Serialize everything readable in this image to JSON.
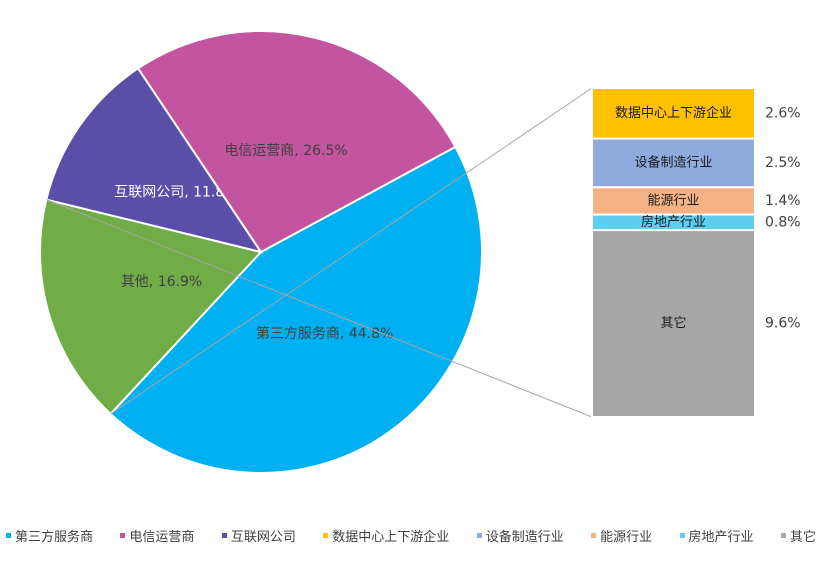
{
  "chart_data": {
    "type": "pie",
    "subtype": "bar-of-pie",
    "title": "",
    "slices": [
      {
        "name": "第三方服务商",
        "value": 44.8,
        "label": "第三方服务商, 44.8%",
        "color": "#00b0f0"
      },
      {
        "name": "其他",
        "value": 16.9,
        "label": "其他, 16.9%",
        "color": "#70ad47"
      },
      {
        "name": "互联网公司",
        "value": 11.8,
        "label": "互联网公司, 11.8%",
        "color": "#5b4ea8"
      },
      {
        "name": "电信运营商",
        "value": 26.5,
        "label": "电信运营商, 26.5%",
        "color": "#c355a0"
      }
    ],
    "breakdown_of": "其他",
    "breakdown": [
      {
        "name": "数据中心上下游企业",
        "value": 2.6,
        "value_label": "2.6%",
        "color": "#ffc000"
      },
      {
        "name": "设备制造行业",
        "value": 2.5,
        "value_label": "2.5%",
        "color": "#8faadc"
      },
      {
        "name": "能源行业",
        "value": 1.4,
        "value_label": "1.4%",
        "color": "#f4b183"
      },
      {
        "name": "房地产行业",
        "value": 0.8,
        "value_label": "0.8%",
        "color": "#5dcef0"
      },
      {
        "name": "其它",
        "value": 9.6,
        "value_label": "9.6%",
        "color": "#a6a6a6"
      }
    ],
    "legend_position": "bottom",
    "legend": [
      {
        "name": "第三方服务商",
        "color": "#00b0f0"
      },
      {
        "name": "电信运营商",
        "color": "#c355a0"
      },
      {
        "name": "互联网公司",
        "color": "#5b4ea8"
      },
      {
        "name": "数据中心上下游企业",
        "color": "#ffc000"
      },
      {
        "name": "设备制造行业",
        "color": "#8faadc"
      },
      {
        "name": "能源行业",
        "color": "#f4b183"
      },
      {
        "name": "房地产行业",
        "color": "#5dcef0"
      },
      {
        "name": "其它",
        "color": "#a6a6a6"
      }
    ]
  }
}
